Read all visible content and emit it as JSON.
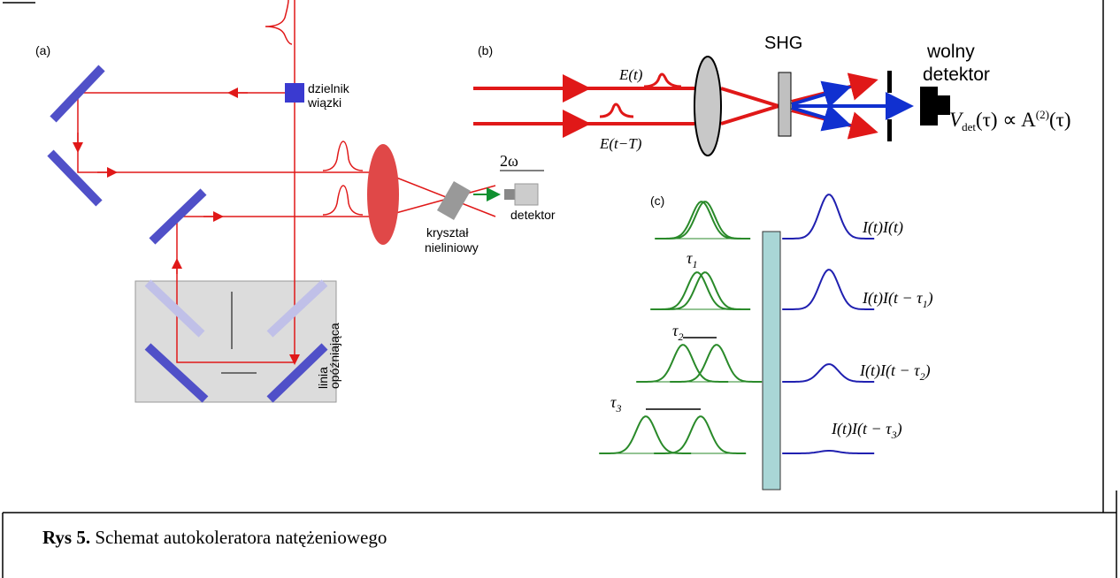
{
  "panel_a": {
    "label": "(a)",
    "beam_splitter": [
      "dzielnik",
      "wiązki"
    ],
    "frequency": "2ω",
    "detector": "detektor",
    "crystal": [
      "kryształ",
      "nieliniowy"
    ],
    "delay_line": [
      "linia",
      "opóźniająca"
    ]
  },
  "panel_b": {
    "label": "(b)",
    "field_1": "E(t)",
    "field_2": "E(t−T)",
    "shg": "SHG",
    "slow_detector": [
      "wolny",
      "detektor"
    ],
    "signal": {
      "v": "V",
      "sub": "det",
      "mid": "(τ) ∝ A",
      "sup": "(2)",
      "end": "(τ)"
    }
  },
  "panel_c": {
    "label": "(c)",
    "delays": [
      {
        "symbol": "τ",
        "sub": "1"
      },
      {
        "symbol": "τ",
        "sub": "2"
      },
      {
        "symbol": "τ",
        "sub": "3"
      }
    ],
    "products": [
      {
        "text": "I(t)I(t)"
      },
      {
        "text": "I(t)I(t − τ",
        "sub": "1",
        "end": ")"
      },
      {
        "text": "I(t)I(t − τ",
        "sub": "2",
        "end": ")"
      },
      {
        "text": "I(t)I(t − τ",
        "sub": "3",
        "end": ")"
      }
    ]
  },
  "caption": {
    "label": "Rys 5.",
    "text": "Schemat autokoleratora natężeniowego"
  }
}
